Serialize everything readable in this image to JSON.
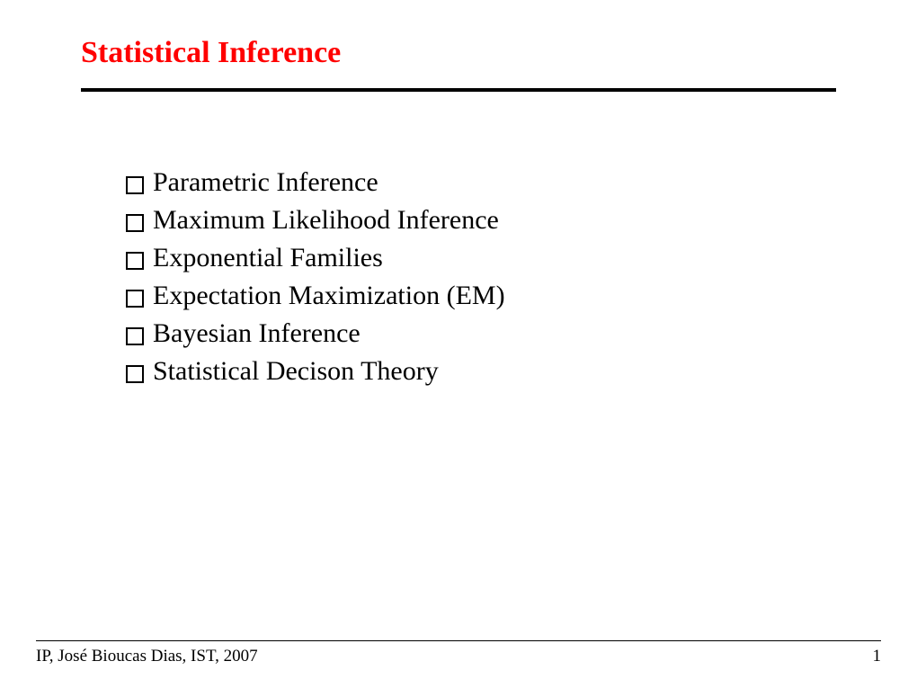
{
  "slide": {
    "title": "Statistical Inference",
    "title_color": "#ff0000",
    "title_fontsize": 34,
    "rule_color": "#000000",
    "rule_width": 4,
    "background_color": "#ffffff",
    "bullets": [
      {
        "text": "Parametric Inference"
      },
      {
        "text": "Maximum Likelihood Inference"
      },
      {
        "text": "Exponential Families"
      },
      {
        "text": "Expectation Maximization (EM)"
      },
      {
        "text": "Bayesian Inference"
      },
      {
        "text": "Statistical Decison Theory"
      }
    ],
    "bullet_fontsize": 30,
    "bullet_color": "#000000",
    "bullet_marker_border_color": "#000000",
    "footer": {
      "left_text": "IP, José Bioucas Dias,  IST, 2007",
      "page_number": "1",
      "rule_color": "#000000",
      "fontsize": 19
    }
  }
}
